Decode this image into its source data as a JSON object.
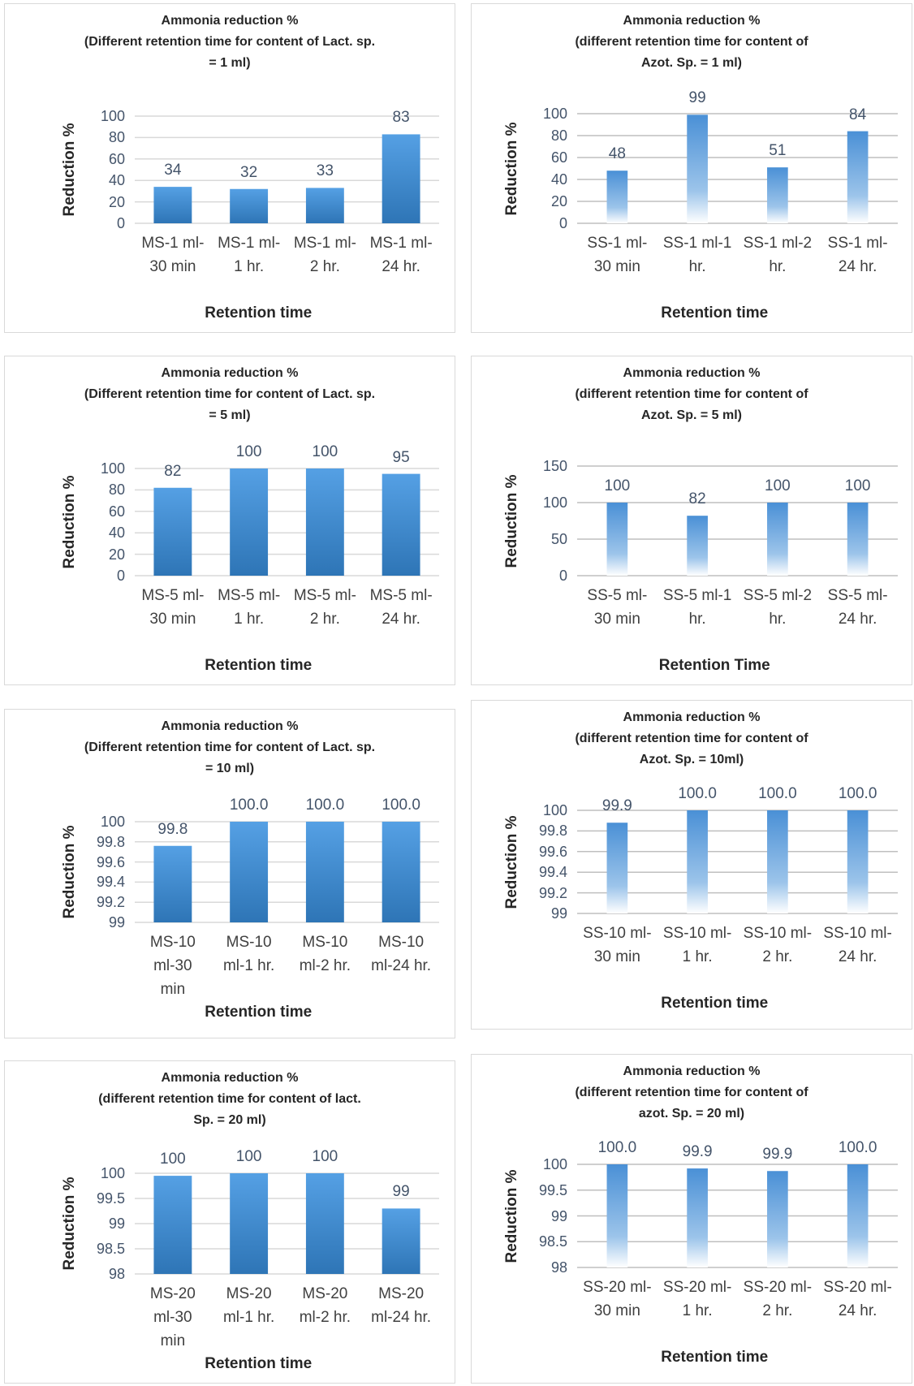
{
  "chart_data": [
    {
      "type": "bar",
      "bar_style": "solid",
      "color": "#2e75b6",
      "title": "Ammonia reduction %\n(Different retention time for content of Lact. sp.\n= 1 ml)",
      "y_label": "Reduction %",
      "x_label": "Retention time",
      "categories": [
        "MS-1 ml-\n30 min",
        "MS-1 ml-\n1 hr.",
        "MS-1 ml-\n2 hr.",
        "MS-1 ml-\n24 hr."
      ],
      "values": [
        34,
        32,
        33,
        83
      ],
      "ylim": [
        0,
        100
      ],
      "yticks": [
        0,
        20,
        40,
        60,
        80,
        100
      ],
      "grid": true
    },
    {
      "type": "bar",
      "bar_style": "fade",
      "color": "#2e75b6",
      "title": "Ammonia reduction %\n(different retention time for content of\nAzot. Sp. = 1 ml)",
      "y_label": "Reduction %",
      "x_label": "Retention time",
      "categories": [
        "SS-1 ml-\n30 min",
        "SS-1 ml-1\nhr.",
        "SS-1 ml-2\nhr.",
        "SS-1 ml-\n24 hr."
      ],
      "values": [
        48,
        99,
        51,
        84
      ],
      "ylim": [
        0,
        100
      ],
      "yticks": [
        0,
        20,
        40,
        60,
        80,
        100
      ],
      "grid": true
    },
    {
      "type": "bar",
      "bar_style": "solid",
      "color": "#2e75b6",
      "title": "Ammonia reduction %\n(Different retention time for content of Lact. sp.\n= 5 ml)",
      "y_label": "Reduction %",
      "x_label": "Retention time",
      "categories": [
        "MS-5 ml-\n30 min",
        "MS-5 ml-\n1 hr.",
        "MS-5 ml-\n2 hr.",
        "MS-5 ml-\n24 hr."
      ],
      "values": [
        82,
        100,
        100,
        95
      ],
      "ylim": [
        0,
        100
      ],
      "yticks": [
        0,
        20,
        40,
        60,
        80,
        100
      ],
      "grid": true
    },
    {
      "type": "bar",
      "bar_style": "fade",
      "color": "#2e75b6",
      "title": "Ammonia reduction %\n(different retention time for content of\nAzot. Sp. = 5 ml)",
      "y_label": "Reduction %",
      "x_label": "Retention Time",
      "categories": [
        "SS-5 ml-\n30 min",
        "SS-5 ml-1\nhr.",
        "SS-5 ml-2\nhr.",
        "SS-5 ml-\n24 hr."
      ],
      "values": [
        100,
        82,
        100,
        100
      ],
      "ylim": [
        0,
        150
      ],
      "yticks": [
        0,
        50,
        100,
        150
      ],
      "grid": true
    },
    {
      "type": "bar",
      "bar_style": "solid",
      "color": "#2e75b6",
      "title": "Ammonia reduction %\n(Different retention time for content of Lact. sp.\n= 10 ml)",
      "y_label": "Reduction %",
      "x_label": "Retention time",
      "categories": [
        "MS-10\nml-30\nmin",
        "MS-10\nml-1 hr.",
        "MS-10\nml-2 hr.",
        "MS-10\nml-24 hr."
      ],
      "values": [
        99.76,
        100,
        100,
        100
      ],
      "value_labels": [
        "99.8",
        "100.0",
        "100.0",
        "100.0"
      ],
      "ylim": [
        99,
        100
      ],
      "yticks": [
        99,
        99.2,
        99.4,
        99.6,
        99.8,
        100
      ],
      "grid": true
    },
    {
      "type": "bar",
      "bar_style": "fade",
      "color": "#2e75b6",
      "title": "Ammonia reduction %\n(different retention time for content of\nAzot. Sp. = 10ml)",
      "y_label": "Reduction %",
      "x_label": "Retention time",
      "categories": [
        "SS-10 ml-\n30 min",
        "SS-10 ml-\n1 hr.",
        "SS-10 ml-\n2 hr.",
        "SS-10 ml-\n24 hr."
      ],
      "values": [
        99.88,
        100,
        100,
        100
      ],
      "value_labels": [
        "99.9",
        "100.0",
        "100.0",
        "100.0"
      ],
      "ylim": [
        99,
        100
      ],
      "yticks": [
        99,
        99.2,
        99.4,
        99.6,
        99.8,
        100
      ],
      "grid": true
    },
    {
      "type": "bar",
      "bar_style": "solid",
      "color": "#2e75b6",
      "title": "Ammonia reduction %\n(different retention time for content of lact.\nSp. = 20 ml)",
      "y_label": "Reduction %",
      "x_label": "Retention time",
      "categories": [
        "MS-20\nml-30\nmin",
        "MS-20\nml-1 hr.",
        "MS-20\nml-2 hr.",
        "MS-20\nml-24 hr."
      ],
      "values": [
        99.95,
        100,
        100,
        99.3
      ],
      "value_labels": [
        "100",
        "100",
        "100",
        "99"
      ],
      "ylim": [
        98,
        100
      ],
      "yticks": [
        98,
        98.5,
        99,
        99.5,
        100
      ],
      "grid": true
    },
    {
      "type": "bar",
      "bar_style": "fade",
      "color": "#2e75b6",
      "title": "Ammonia reduction %\n(different retention time for content of\nazot. Sp. = 20 ml)",
      "y_label": "Reduction %",
      "x_label": "Retention time",
      "categories": [
        "SS-20 ml-\n30 min",
        "SS-20 ml-\n1 hr.",
        "SS-20 ml-\n2 hr.",
        "SS-20 ml-\n24 hr."
      ],
      "values": [
        100,
        99.92,
        99.87,
        100
      ],
      "value_labels": [
        "100.0",
        "99.9",
        "99.9",
        "100.0"
      ],
      "ylim": [
        98,
        100
      ],
      "yticks": [
        98,
        98.5,
        99,
        99.5,
        100
      ],
      "grid": true
    }
  ]
}
